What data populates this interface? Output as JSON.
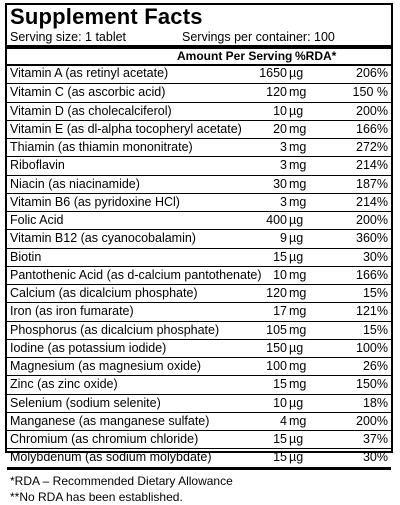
{
  "title": "Supplement Facts",
  "serving_size": "Serving size: 1 tablet",
  "servings_per_container": "Servings per container: 100",
  "header": {
    "amount": "Amount Per Serving",
    "rda": "%RDA*"
  },
  "nutrients": [
    {
      "name": "Vitamin A (as retinyl acetate)",
      "value": "1650",
      "unit": "µg",
      "rda": "206%"
    },
    {
      "name": "Vitamin C (as ascorbic acid)",
      "value": "120",
      "unit": "mg",
      "rda": "150 %"
    },
    {
      "name": "Vitamin D (as cholecalciferol)",
      "value": "10",
      "unit": "µg",
      "rda": "200%"
    },
    {
      "name": "Vitamin E (as dl-alpha tocopheryl acetate)",
      "value": "20",
      "unit": "mg",
      "rda": "166%"
    },
    {
      "name": "Thiamin (as thiamin mononitrate)",
      "value": "3",
      "unit": "mg",
      "rda": "272%"
    },
    {
      "name": "Riboflavin",
      "value": "3",
      "unit": "mg",
      "rda": "214%"
    },
    {
      "name": "Niacin (as niacinamide)",
      "value": "30",
      "unit": "mg",
      "rda": "187%"
    },
    {
      "name": "Vitamin B6 (as pyridoxine HCl)",
      "value": "3",
      "unit": "mg",
      "rda": "214%"
    },
    {
      "name": "Folic Acid",
      "value": "400",
      "unit": "µg",
      "rda": "200%"
    },
    {
      "name": "Vitamin B12 (as cyanocobalamin)",
      "value": "9",
      "unit": "µg",
      "rda": "360%"
    },
    {
      "name": "Biotin",
      "value": "15",
      "unit": "µg",
      "rda": "30%"
    },
    {
      "name": "Pantothenic Acid (as d-calcium pantothenate)",
      "value": "10",
      "unit": "mg",
      "rda": "166%"
    },
    {
      "name": "Calcium (as dicalcium phosphate)",
      "value": "120",
      "unit": "mg",
      "rda": "15%"
    },
    {
      "name": "Iron (as iron fumarate)",
      "value": "17",
      "unit": "mg",
      "rda": "121%"
    },
    {
      "name": "Phosphorus (as dicalcium phosphate)",
      "value": "105",
      "unit": "mg",
      "rda": "15%"
    },
    {
      "name": "Iodine (as potassium iodide)",
      "value": "150",
      "unit": "µg",
      "rda": "100%"
    },
    {
      "name": "Magnesium (as magnesium oxide)",
      "value": "100",
      "unit": "mg",
      "rda": "26%"
    },
    {
      "name": "Zinc (as zinc oxide)",
      "value": "15",
      "unit": "mg",
      "rda": "150%"
    },
    {
      "name": "Selenium (sodium selenite)",
      "value": "10",
      "unit": "µg",
      "rda": "18%"
    },
    {
      "name": "Manganese (as manganese sulfate)",
      "value": "4",
      "unit": "mg",
      "rda": "200%"
    },
    {
      "name": "Chromium (as chromium chloride)",
      "value": "15",
      "unit": "µg",
      "rda": "37%"
    },
    {
      "name": "Molybdenum (as sodium molybdate)",
      "value": "15",
      "unit": "µg",
      "rda": "30%"
    }
  ],
  "footnotes": [
    "*RDA – Recommended Dietary Allowance",
    "**No RDA has been established."
  ]
}
